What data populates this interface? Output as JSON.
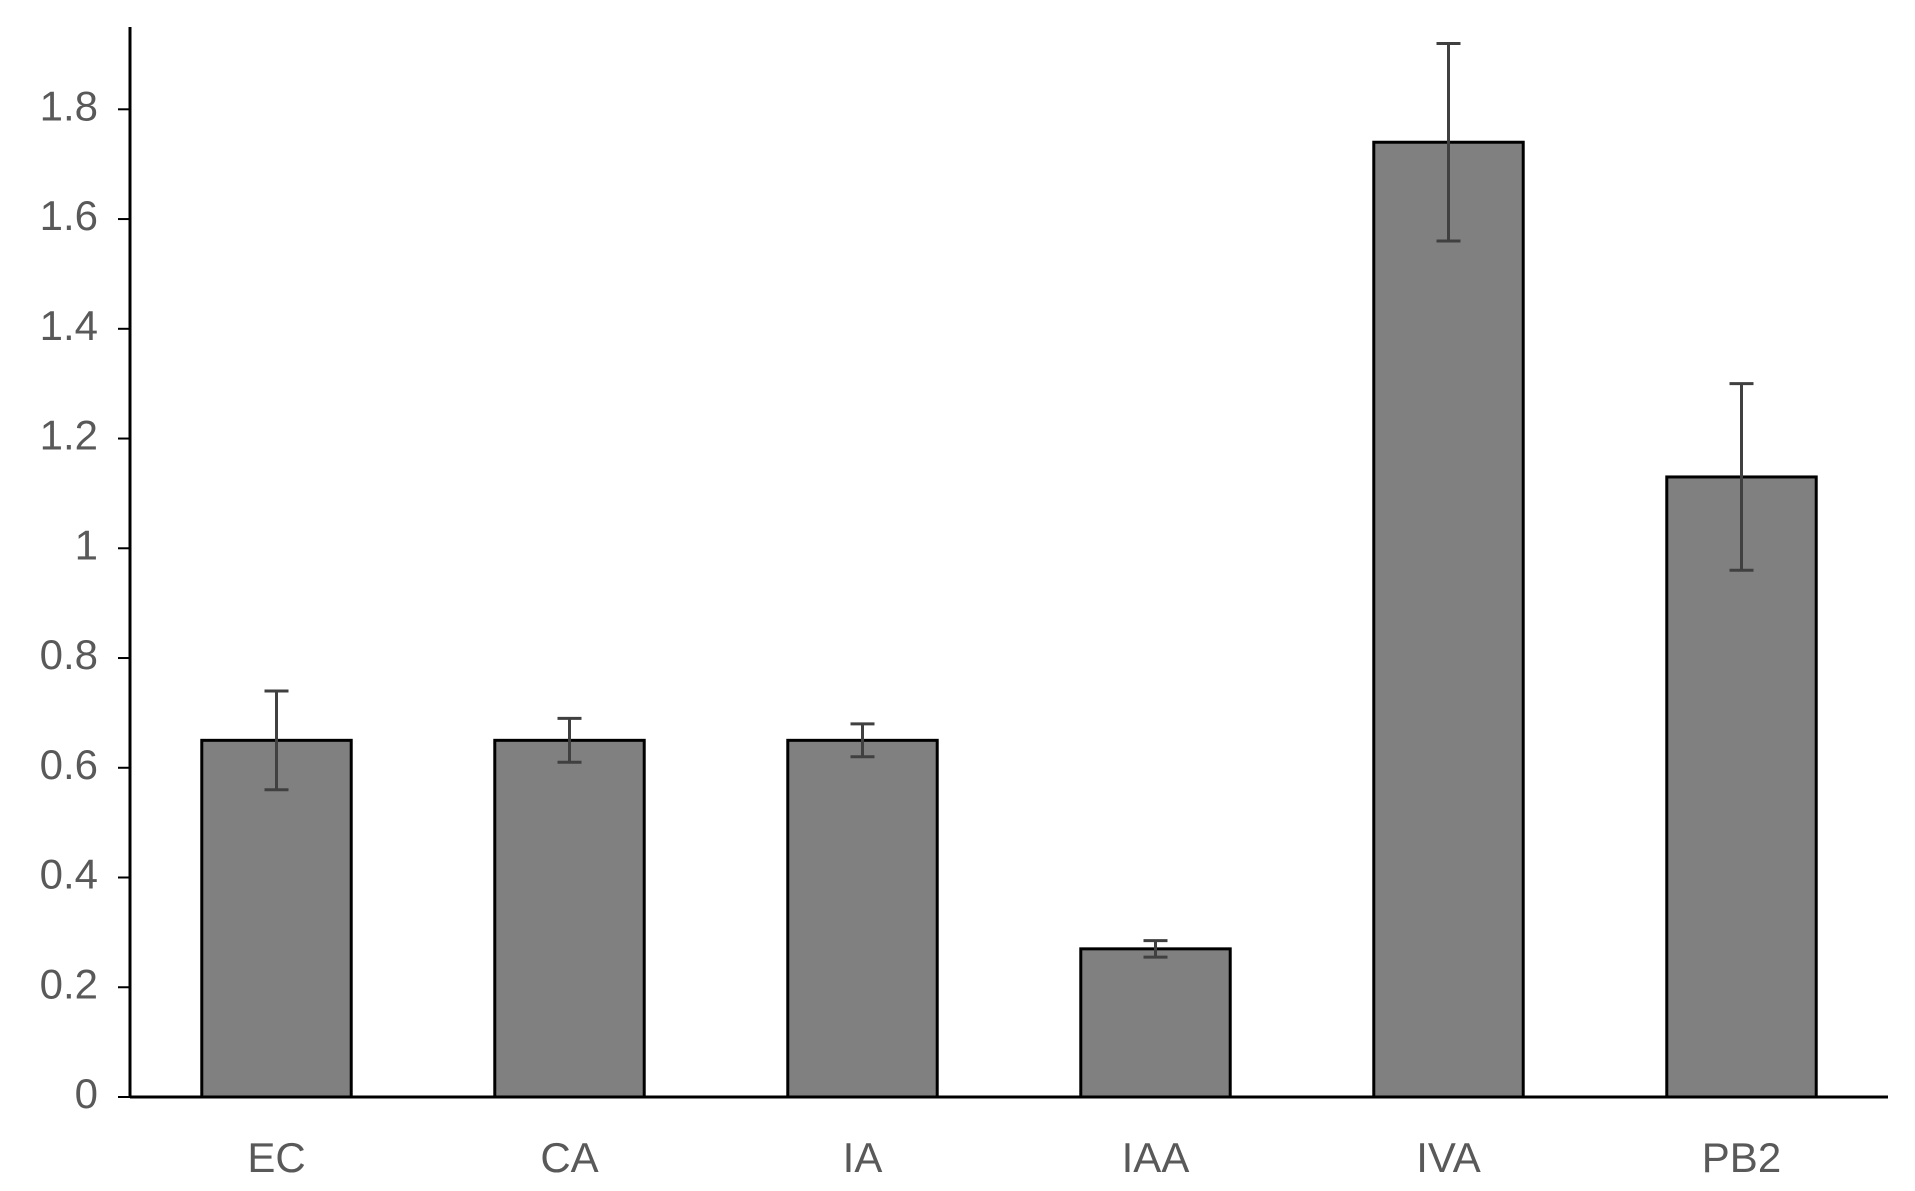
{
  "chart_data": {
    "type": "bar",
    "categories": [
      "EC",
      "CA",
      "IA",
      "IAA",
      "IVA",
      "PB2"
    ],
    "values": [
      0.65,
      0.65,
      0.65,
      0.27,
      1.74,
      1.13
    ],
    "errors": [
      0.09,
      0.04,
      0.03,
      0.015,
      0.18,
      0.17
    ],
    "color": "#808080",
    "ylim": [
      0,
      1.95
    ],
    "yticks": [
      0,
      0.2,
      0.4,
      0.6,
      0.8,
      1,
      1.2,
      1.4,
      1.6,
      1.8
    ],
    "grid": false
  }
}
